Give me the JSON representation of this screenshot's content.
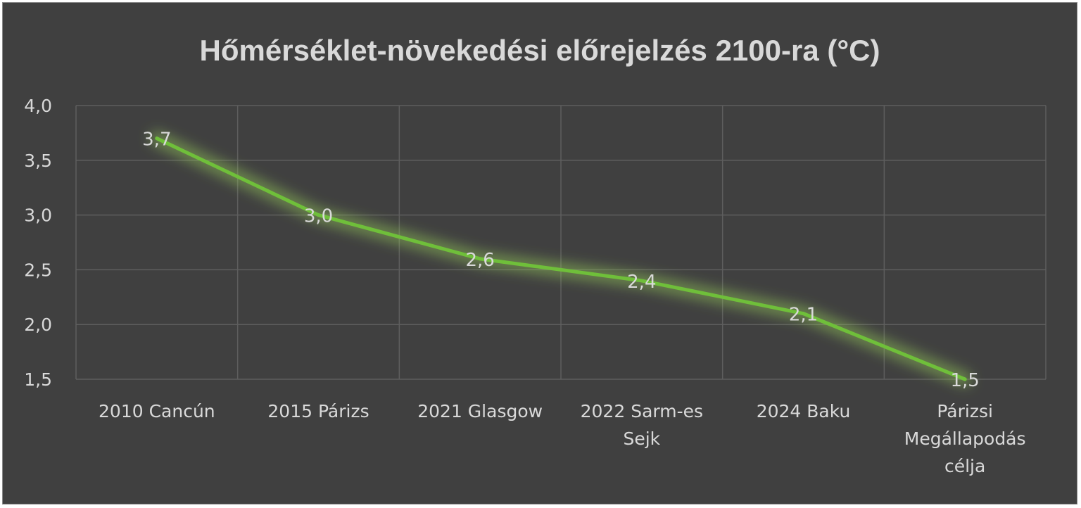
{
  "chart_data": {
    "type": "line",
    "title": "Hőmérséklet-növekedési előrejelzés 2100-ra (°C)",
    "categories": [
      [
        "2010 Cancún"
      ],
      [
        "2015 Párizs"
      ],
      [
        "2021 Glasgow"
      ],
      [
        "2022 Sarm-es",
        "Sejk"
      ],
      [
        "2024 Baku"
      ],
      [
        "Párizsi",
        "Megállapodás",
        "célja"
      ]
    ],
    "values": [
      3.7,
      3.0,
      2.6,
      2.4,
      2.1,
      1.5
    ],
    "data_labels": [
      "3,7",
      "3,0",
      "2,6",
      "2,4",
      "2,1",
      "1,5"
    ],
    "ylim": [
      1.5,
      4.0
    ],
    "y_ticks": [
      4.0,
      3.5,
      3.0,
      2.5,
      2.0,
      1.5
    ],
    "y_tick_labels": [
      "4,0",
      "3,5",
      "3,0",
      "2,5",
      "2,0",
      "1,5"
    ],
    "grid": true,
    "line_color": "#6fbf3a",
    "glow_color": "#9bd35a",
    "background_color": "#404040",
    "text_color": "#d9d9d9"
  }
}
